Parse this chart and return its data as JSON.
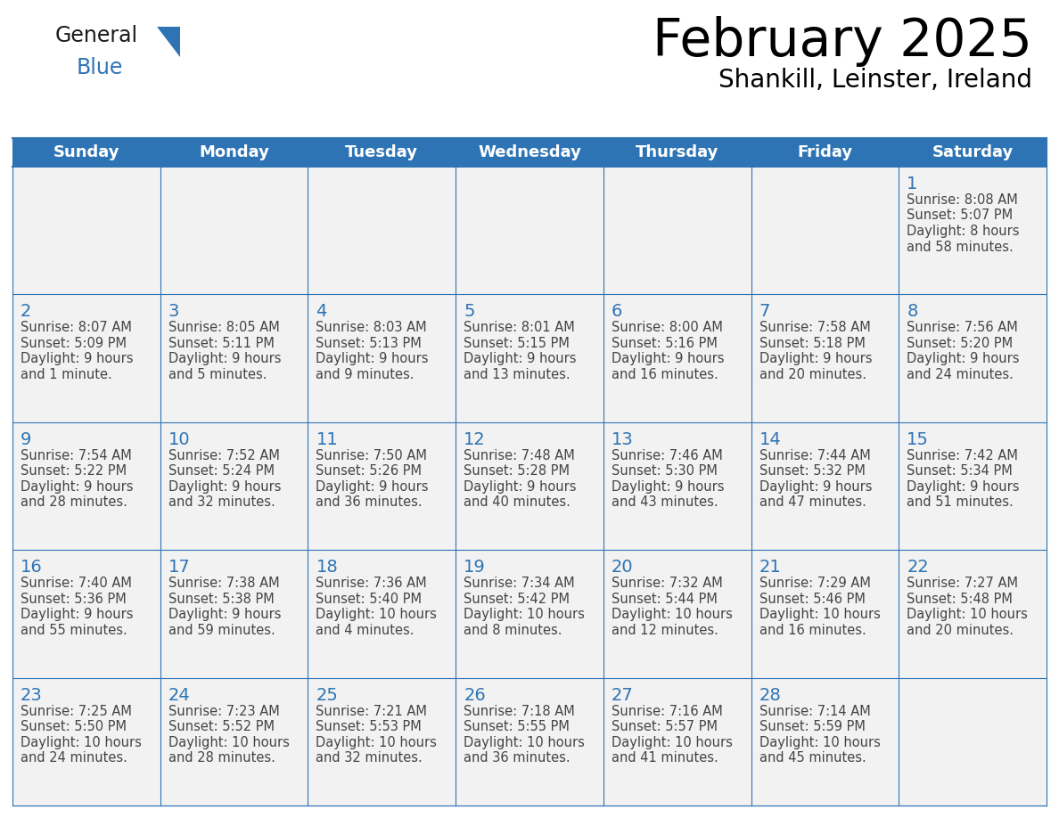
{
  "title": "February 2025",
  "subtitle": "Shankill, Leinster, Ireland",
  "header_bg": "#2E74B5",
  "header_text_color": "#FFFFFF",
  "cell_bg": "#F2F2F2",
  "cell_bg_white": "#FFFFFF",
  "cell_border_color": "#2E74B5",
  "day_number_color": "#2E74B5",
  "day_info_color": "#444444",
  "weekdays": [
    "Sunday",
    "Monday",
    "Tuesday",
    "Wednesday",
    "Thursday",
    "Friday",
    "Saturday"
  ],
  "days": [
    {
      "day": 1,
      "col": 6,
      "row": 0,
      "sunrise": "8:08 AM",
      "sunset": "5:07 PM",
      "daylight": "8 hours and 58 minutes"
    },
    {
      "day": 2,
      "col": 0,
      "row": 1,
      "sunrise": "8:07 AM",
      "sunset": "5:09 PM",
      "daylight": "9 hours and 1 minute"
    },
    {
      "day": 3,
      "col": 1,
      "row": 1,
      "sunrise": "8:05 AM",
      "sunset": "5:11 PM",
      "daylight": "9 hours and 5 minutes"
    },
    {
      "day": 4,
      "col": 2,
      "row": 1,
      "sunrise": "8:03 AM",
      "sunset": "5:13 PM",
      "daylight": "9 hours and 9 minutes"
    },
    {
      "day": 5,
      "col": 3,
      "row": 1,
      "sunrise": "8:01 AM",
      "sunset": "5:15 PM",
      "daylight": "9 hours and 13 minutes"
    },
    {
      "day": 6,
      "col": 4,
      "row": 1,
      "sunrise": "8:00 AM",
      "sunset": "5:16 PM",
      "daylight": "9 hours and 16 minutes"
    },
    {
      "day": 7,
      "col": 5,
      "row": 1,
      "sunrise": "7:58 AM",
      "sunset": "5:18 PM",
      "daylight": "9 hours and 20 minutes"
    },
    {
      "day": 8,
      "col": 6,
      "row": 1,
      "sunrise": "7:56 AM",
      "sunset": "5:20 PM",
      "daylight": "9 hours and 24 minutes"
    },
    {
      "day": 9,
      "col": 0,
      "row": 2,
      "sunrise": "7:54 AM",
      "sunset": "5:22 PM",
      "daylight": "9 hours and 28 minutes"
    },
    {
      "day": 10,
      "col": 1,
      "row": 2,
      "sunrise": "7:52 AM",
      "sunset": "5:24 PM",
      "daylight": "9 hours and 32 minutes"
    },
    {
      "day": 11,
      "col": 2,
      "row": 2,
      "sunrise": "7:50 AM",
      "sunset": "5:26 PM",
      "daylight": "9 hours and 36 minutes"
    },
    {
      "day": 12,
      "col": 3,
      "row": 2,
      "sunrise": "7:48 AM",
      "sunset": "5:28 PM",
      "daylight": "9 hours and 40 minutes"
    },
    {
      "day": 13,
      "col": 4,
      "row": 2,
      "sunrise": "7:46 AM",
      "sunset": "5:30 PM",
      "daylight": "9 hours and 43 minutes"
    },
    {
      "day": 14,
      "col": 5,
      "row": 2,
      "sunrise": "7:44 AM",
      "sunset": "5:32 PM",
      "daylight": "9 hours and 47 minutes"
    },
    {
      "day": 15,
      "col": 6,
      "row": 2,
      "sunrise": "7:42 AM",
      "sunset": "5:34 PM",
      "daylight": "9 hours and 51 minutes"
    },
    {
      "day": 16,
      "col": 0,
      "row": 3,
      "sunrise": "7:40 AM",
      "sunset": "5:36 PM",
      "daylight": "9 hours and 55 minutes"
    },
    {
      "day": 17,
      "col": 1,
      "row": 3,
      "sunrise": "7:38 AM",
      "sunset": "5:38 PM",
      "daylight": "9 hours and 59 minutes"
    },
    {
      "day": 18,
      "col": 2,
      "row": 3,
      "sunrise": "7:36 AM",
      "sunset": "5:40 PM",
      "daylight": "10 hours and 4 minutes"
    },
    {
      "day": 19,
      "col": 3,
      "row": 3,
      "sunrise": "7:34 AM",
      "sunset": "5:42 PM",
      "daylight": "10 hours and 8 minutes"
    },
    {
      "day": 20,
      "col": 4,
      "row": 3,
      "sunrise": "7:32 AM",
      "sunset": "5:44 PM",
      "daylight": "10 hours and 12 minutes"
    },
    {
      "day": 21,
      "col": 5,
      "row": 3,
      "sunrise": "7:29 AM",
      "sunset": "5:46 PM",
      "daylight": "10 hours and 16 minutes"
    },
    {
      "day": 22,
      "col": 6,
      "row": 3,
      "sunrise": "7:27 AM",
      "sunset": "5:48 PM",
      "daylight": "10 hours and 20 minutes"
    },
    {
      "day": 23,
      "col": 0,
      "row": 4,
      "sunrise": "7:25 AM",
      "sunset": "5:50 PM",
      "daylight": "10 hours and 24 minutes"
    },
    {
      "day": 24,
      "col": 1,
      "row": 4,
      "sunrise": "7:23 AM",
      "sunset": "5:52 PM",
      "daylight": "10 hours and 28 minutes"
    },
    {
      "day": 25,
      "col": 2,
      "row": 4,
      "sunrise": "7:21 AM",
      "sunset": "5:53 PM",
      "daylight": "10 hours and 32 minutes"
    },
    {
      "day": 26,
      "col": 3,
      "row": 4,
      "sunrise": "7:18 AM",
      "sunset": "5:55 PM",
      "daylight": "10 hours and 36 minutes"
    },
    {
      "day": 27,
      "col": 4,
      "row": 4,
      "sunrise": "7:16 AM",
      "sunset": "5:57 PM",
      "daylight": "10 hours and 41 minutes"
    },
    {
      "day": 28,
      "col": 5,
      "row": 4,
      "sunrise": "7:14 AM",
      "sunset": "5:59 PM",
      "daylight": "10 hours and 45 minutes"
    }
  ],
  "num_rows": 5,
  "logo_general_color": "#1a1a1a",
  "logo_blue_color": "#2E74B5"
}
